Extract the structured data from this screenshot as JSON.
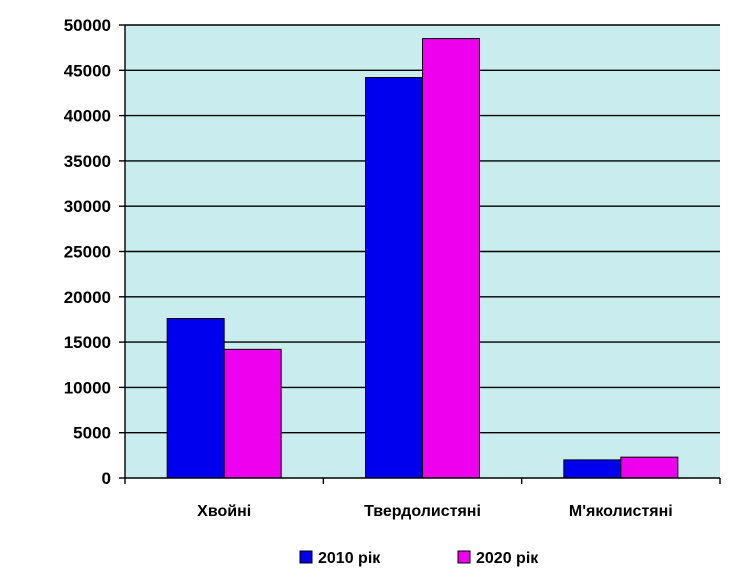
{
  "chart_data": {
    "type": "bar",
    "categories": [
      "Хвойні",
      "Твердолистяні",
      "М'яколистяні"
    ],
    "series": [
      {
        "name": "2010 рік",
        "values": [
          17600,
          44200,
          2000
        ]
      },
      {
        "name": "2020 рік",
        "values": [
          14200,
          48500,
          2300
        ]
      }
    ],
    "ylim": [
      0,
      50000
    ],
    "yticks": [
      0,
      5000,
      10000,
      15000,
      20000,
      25000,
      30000,
      35000,
      40000,
      45000,
      50000
    ],
    "title": "",
    "xlabel": "",
    "ylabel": "",
    "grid": true,
    "legend_position": "bottom",
    "colors": {
      "plot_background": "#c9ecee",
      "series_2010": "#0000ee",
      "series_2020": "#ee00ee",
      "gridline": "#000000"
    }
  }
}
